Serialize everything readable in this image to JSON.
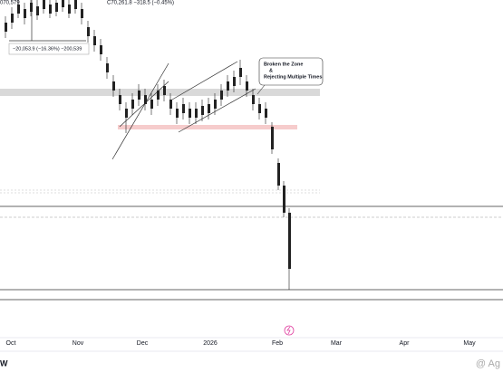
{
  "header": {
    "ohlc": "070,579",
    "change": "C70,261.8 −318.5 (−0.45%)"
  },
  "measure": {
    "label": "−20,053.9 (−16.36%) −200,539"
  },
  "annotation": {
    "line1": "Broken the Zone",
    "line2": "&",
    "line3": "Rejecting Multiple Times"
  },
  "x_axis": {
    "labels": [
      "Oct",
      "Nov",
      "Dec",
      "2026",
      "Feb",
      "Mar",
      "Apr",
      "May"
    ]
  },
  "footer": {
    "logo": "W",
    "watermark": "@ Ag"
  }
}
